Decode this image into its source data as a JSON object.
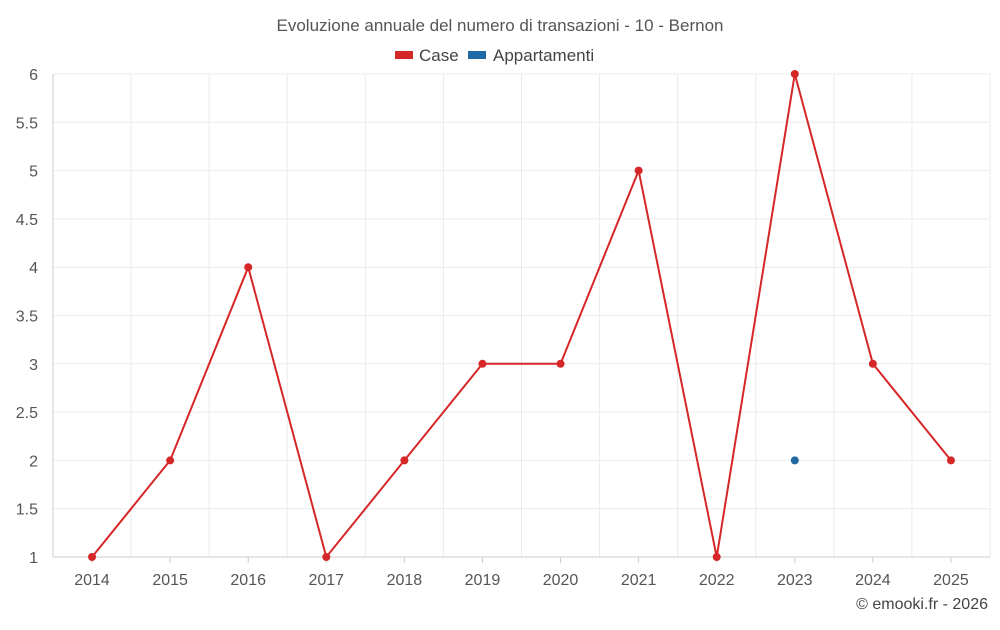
{
  "chart_data": {
    "type": "line",
    "title": "Evoluzione annuale del numero di transazioni - 10 - Bernon",
    "categories": [
      "2014",
      "2015",
      "2016",
      "2017",
      "2018",
      "2019",
      "2020",
      "2021",
      "2022",
      "2023",
      "2024",
      "2025"
    ],
    "series": [
      {
        "name": "Case",
        "color": "#d62728",
        "values": [
          1,
          2,
          4,
          1,
          2,
          3,
          3,
          5,
          1,
          6,
          3,
          2
        ]
      },
      {
        "name": "Appartamenti",
        "color": "#1f6aa5",
        "values": [
          null,
          null,
          null,
          null,
          null,
          null,
          null,
          null,
          null,
          2,
          null,
          null
        ]
      }
    ],
    "y_ticks": [
      "1",
      "1.5",
      "2",
      "2.5",
      "3",
      "3.5",
      "4",
      "4.5",
      "5",
      "5.5",
      "6"
    ],
    "ylim": [
      1,
      6
    ],
    "xlabel": "",
    "ylabel": "",
    "legend_position": "top-center",
    "grid": true
  },
  "credit": "© emooki.fr - 2026"
}
